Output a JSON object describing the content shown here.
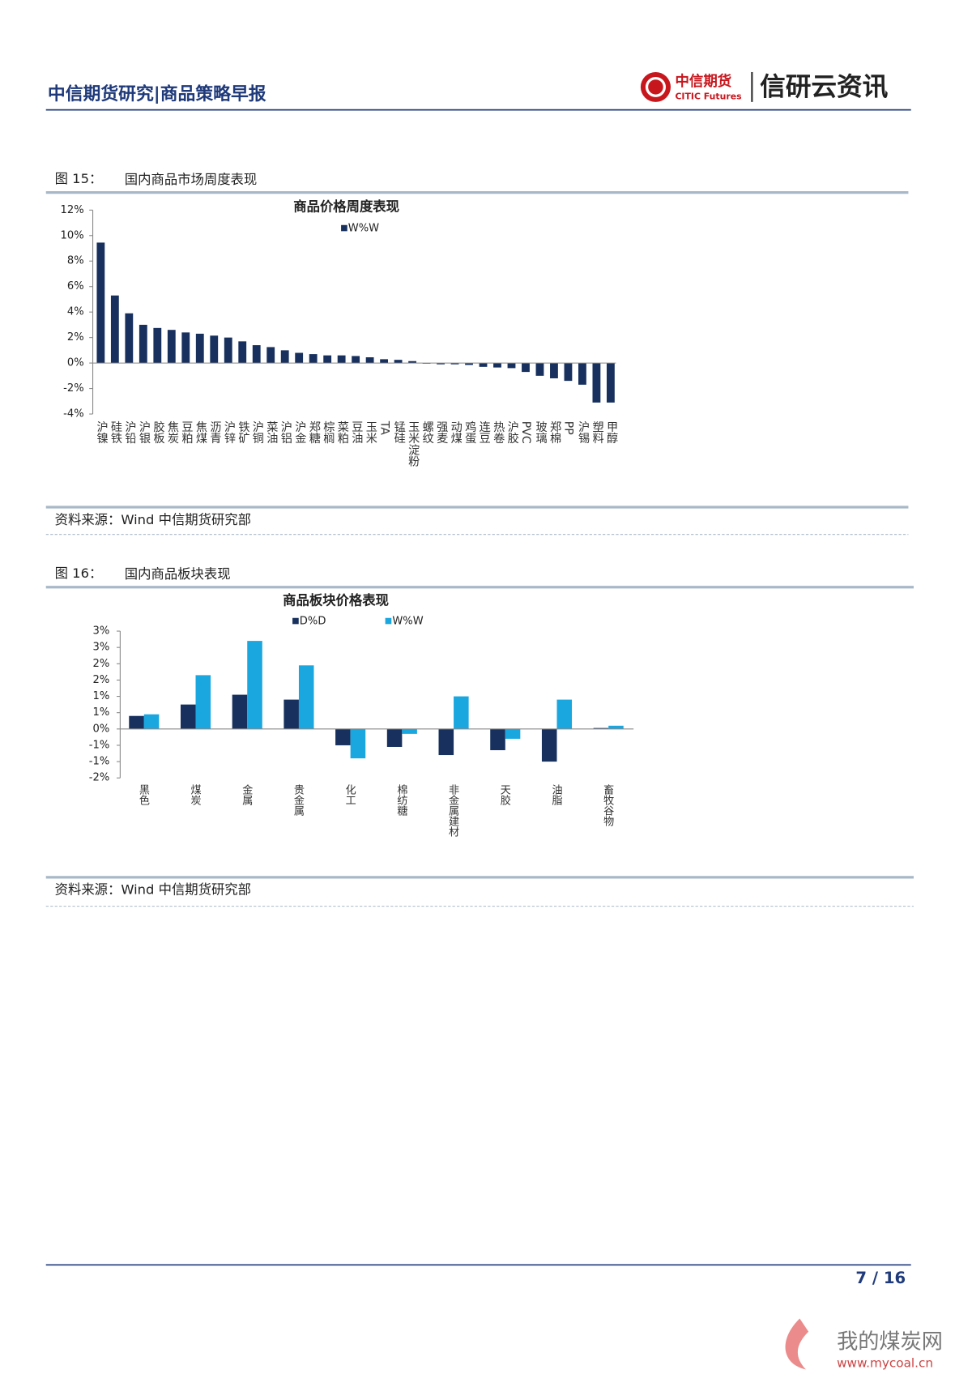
{
  "header": {
    "title": "中信期货研究|商品策略早报",
    "brand_cn": "中信期货",
    "brand_en": "CITIC Futures",
    "brand_right": "信研云资讯"
  },
  "figures": [
    {
      "label": "图 15：",
      "caption": "国内商品市场周度表现",
      "source": "资料来源：Wind 中信期货研究部"
    },
    {
      "label": "图 16：",
      "caption": "国内商品板块表现",
      "source": "资料来源：Wind 中信期货研究部"
    }
  ],
  "chart_data": [
    {
      "type": "bar",
      "title": "商品价格周度表现",
      "categories": [
        "沪镍",
        "硅铁",
        "沪铅",
        "沪银",
        "胶板",
        "焦炭",
        "豆粕",
        "焦煤",
        "沥青",
        "沪锌",
        "铁矿",
        "沪铜",
        "菜油",
        "沪铝",
        "沪金",
        "郑糖",
        "棕榈",
        "菜粕",
        "豆油",
        "玉米",
        "TA",
        "锰硅",
        "玉米淀粉",
        "螺纹",
        "强麦",
        "动煤",
        "鸡蛋",
        "连豆",
        "热卷",
        "沪胶",
        "PVC",
        "玻璃",
        "郑棉",
        "PP",
        "沪锡",
        "塑料",
        "甲醇"
      ],
      "series": [
        {
          "name": "W%W",
          "color": "#17305e",
          "values": [
            9.45,
            5.3,
            3.9,
            3.0,
            2.75,
            2.6,
            2.4,
            2.3,
            2.15,
            2.0,
            1.7,
            1.4,
            1.25,
            1.0,
            0.8,
            0.7,
            0.6,
            0.6,
            0.55,
            0.45,
            0.3,
            0.25,
            0.15,
            -0.05,
            -0.1,
            -0.1,
            -0.15,
            -0.3,
            -0.35,
            -0.4,
            -0.7,
            -1.0,
            -1.2,
            -1.4,
            -1.7,
            -3.1,
            -3.1
          ]
        }
      ],
      "ylim": [
        -4,
        12
      ],
      "yticks": [
        {
          "value": -4,
          "label": "-4%"
        },
        {
          "value": -2,
          "label": "-2%"
        },
        {
          "value": 0,
          "label": "0%"
        },
        {
          "value": 2,
          "label": "2%"
        },
        {
          "value": 4,
          "label": "4%"
        },
        {
          "value": 6,
          "label": "6%"
        },
        {
          "value": 8,
          "label": "8%"
        },
        {
          "value": 10,
          "label": "10%"
        },
        {
          "value": 12,
          "label": "12%"
        }
      ],
      "legend": "top"
    },
    {
      "type": "bar",
      "title": "商品板块价格表现",
      "categories": [
        "黑色",
        "煤炭",
        "金属",
        "贵金属",
        "化工",
        "棉纺糖",
        "非金属建材",
        "天胶",
        "油脂",
        "畜牧谷物"
      ],
      "series": [
        {
          "name": "D%D",
          "color": "#17305e",
          "values": [
            0.4,
            0.75,
            1.05,
            0.9,
            -0.5,
            -0.55,
            -0.8,
            -0.65,
            -1.0,
            0.03
          ]
        },
        {
          "name": "W%W",
          "color": "#1aa7e0",
          "values": [
            0.45,
            1.65,
            2.7,
            1.95,
            -0.9,
            -0.15,
            1.0,
            -0.3,
            0.9,
            0.1
          ]
        }
      ],
      "ylim": [
        -1.5,
        3
      ],
      "yticks": [
        {
          "value": -1.5,
          "label": "-2%"
        },
        {
          "value": -1,
          "label": "-1%"
        },
        {
          "value": -0.5,
          "label": "-1%"
        },
        {
          "value": 0,
          "label": "0%"
        },
        {
          "value": 0.5,
          "label": "1%"
        },
        {
          "value": 1,
          "label": "1%"
        },
        {
          "value": 1.5,
          "label": "2%"
        },
        {
          "value": 2,
          "label": "2%"
        },
        {
          "value": 2.5,
          "label": "3%"
        },
        {
          "value": 3,
          "label": "3%"
        }
      ],
      "legend": "top"
    }
  ],
  "footer": {
    "page": "7 / 16"
  },
  "watermark": {
    "cn": "我的煤炭网",
    "url": "www.mycoal.cn"
  }
}
